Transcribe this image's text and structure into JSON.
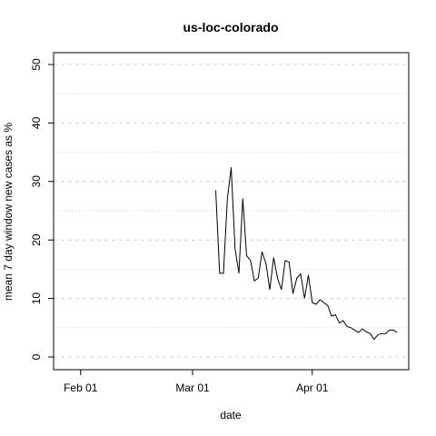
{
  "chart_data": {
    "type": "line",
    "title": "us-loc-colorado",
    "xlabel": "date",
    "ylabel": "mean  7  day window new cases as %",
    "x_ticks": [
      "Feb 01",
      "Mar 01",
      "Apr 01"
    ],
    "y_ticks": [
      "0",
      "10",
      "20",
      "30",
      "40",
      "50"
    ],
    "ylim": [
      0,
      50
    ],
    "xlim": [
      "2020-01-25",
      "2020-04-26"
    ],
    "grid": "horizontal-dashed",
    "series": [
      {
        "x": [
          "2020-03-07",
          "2020-03-08",
          "2020-03-09",
          "2020-03-10",
          "2020-03-11",
          "2020-03-12",
          "2020-03-13",
          "2020-03-14",
          "2020-03-15",
          "2020-03-16",
          "2020-03-17",
          "2020-03-18",
          "2020-03-19",
          "2020-03-20",
          "2020-03-21",
          "2020-03-22",
          "2020-03-23",
          "2020-03-24",
          "2020-03-25",
          "2020-03-26",
          "2020-03-27",
          "2020-03-28",
          "2020-03-29",
          "2020-03-30",
          "2020-03-31",
          "2020-04-01",
          "2020-04-02",
          "2020-04-03",
          "2020-04-04",
          "2020-04-05",
          "2020-04-06",
          "2020-04-07",
          "2020-04-08",
          "2020-04-09",
          "2020-04-10",
          "2020-04-11",
          "2020-04-12",
          "2020-04-13",
          "2020-04-14",
          "2020-04-15",
          "2020-04-16",
          "2020-04-17",
          "2020-04-18",
          "2020-04-19",
          "2020-04-20",
          "2020-04-21",
          "2020-04-22",
          "2020-04-23",
          "2020-04-24",
          "2020-04-25"
        ],
        "y": [
          28.5,
          14.3,
          14.3,
          27.0,
          32.4,
          18.5,
          14.3,
          27.1,
          17.3,
          16.5,
          13.0,
          13.5,
          18.0,
          16.0,
          11.5,
          17.0,
          13.5,
          11.5,
          16.5,
          16.2,
          10.8,
          13.5,
          14.2,
          10.0,
          14.0,
          9.3,
          9.0,
          9.8,
          9.3,
          8.8,
          7.0,
          7.2,
          5.8,
          6.2,
          5.2,
          5.0,
          4.6,
          4.2,
          4.8,
          4.3,
          4.0,
          3.0,
          3.8,
          4.0,
          4.0,
          4.6,
          4.6,
          4.2,
          null,
          null
        ]
      }
    ]
  }
}
